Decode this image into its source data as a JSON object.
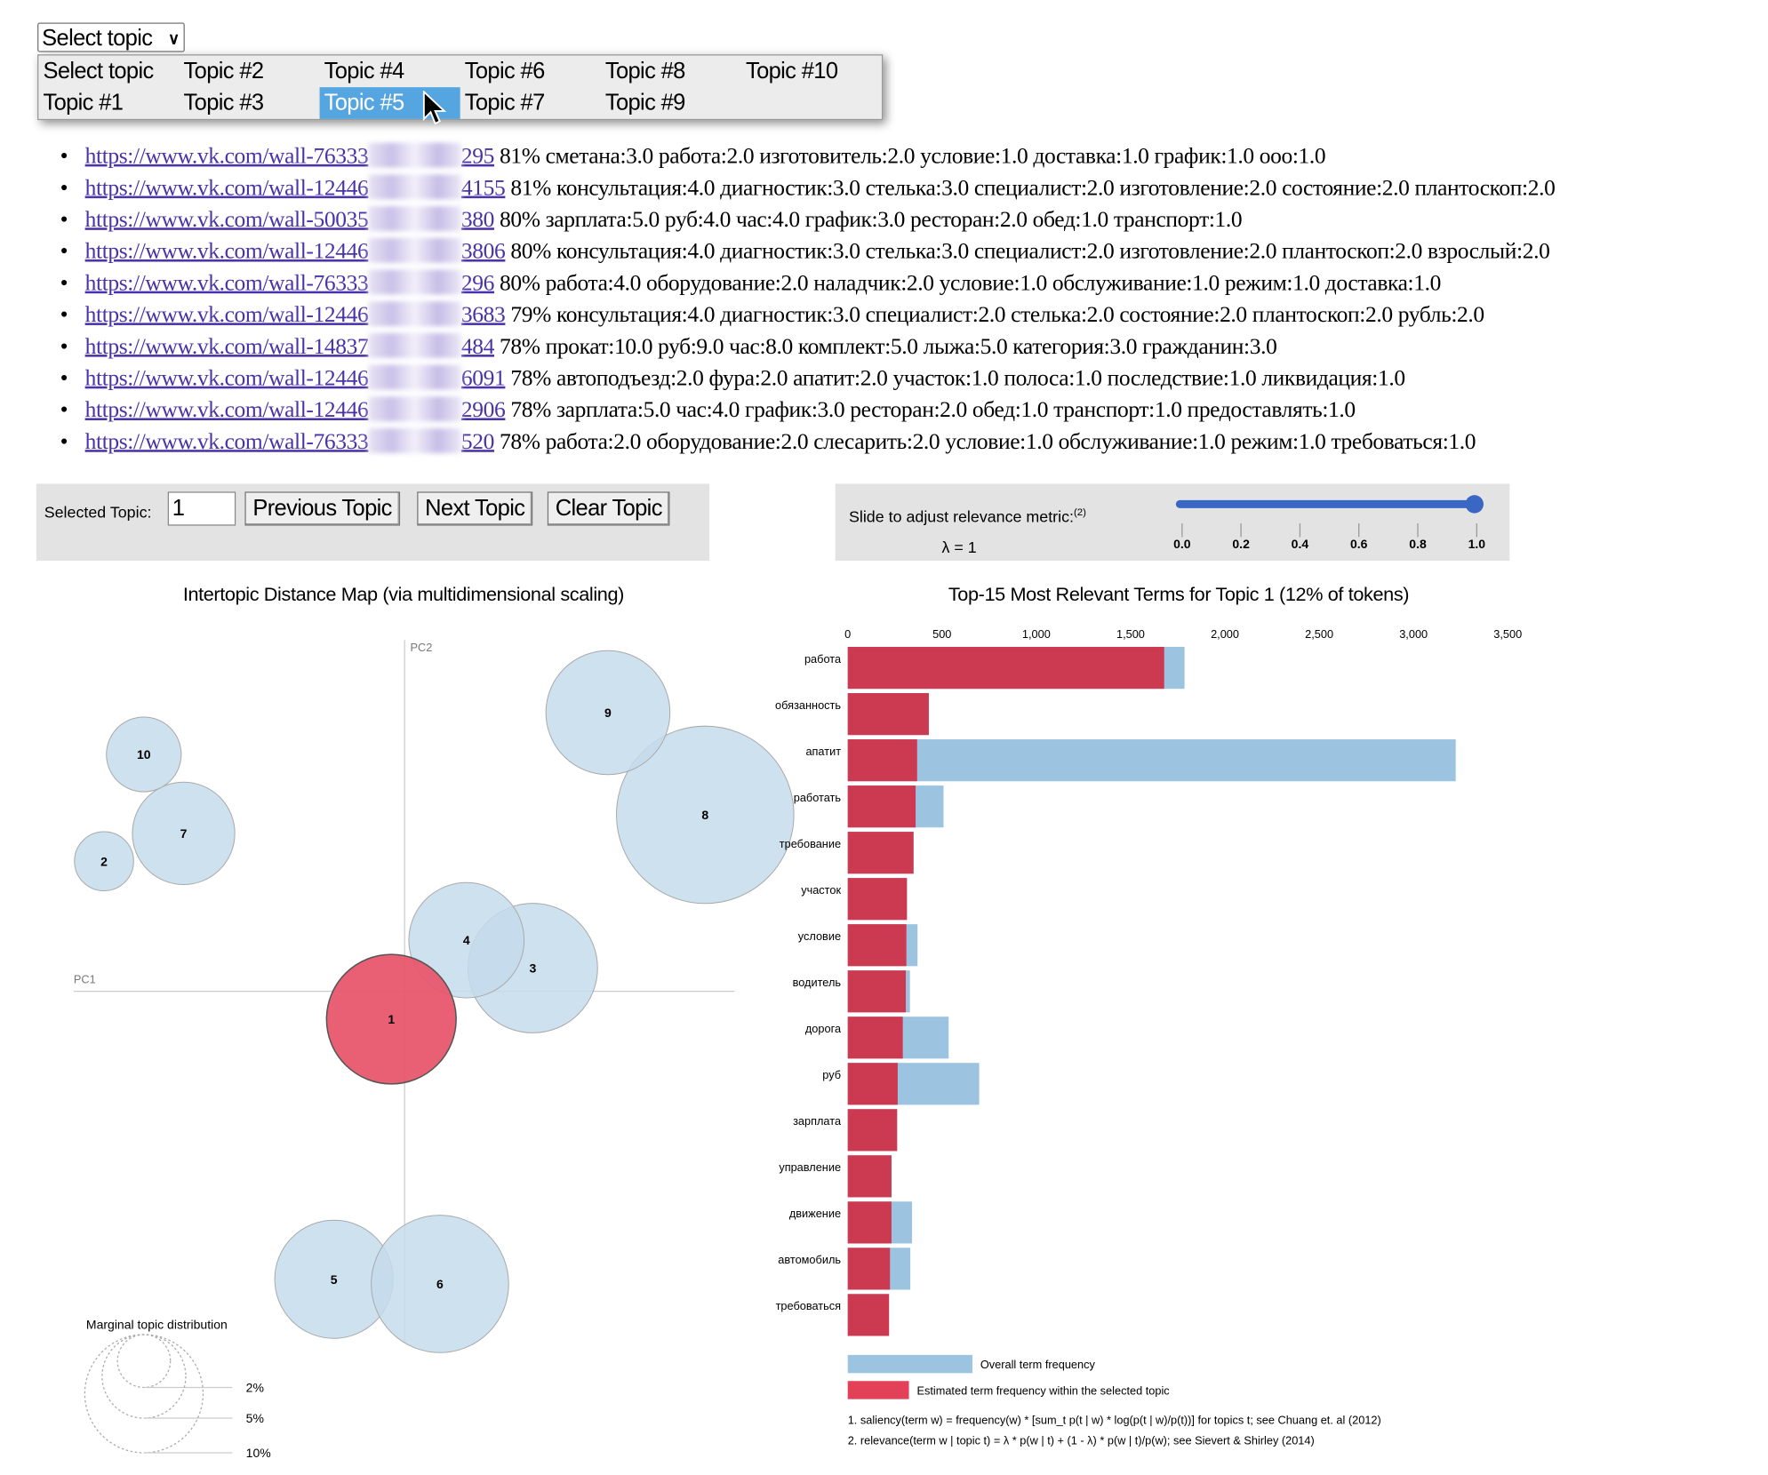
{
  "select": {
    "value": "Select topic",
    "options": [
      "Select topic",
      "Topic #1",
      "Topic #2",
      "Topic #3",
      "Topic #4",
      "Topic #5",
      "Topic #6",
      "Topic #7",
      "Topic #8",
      "Topic #9",
      "Topic #10"
    ],
    "highlighted_index": 5
  },
  "documents": [
    {
      "link_prefix": "https://www.vk.com/wall-76333",
      "link_suffix": "295",
      "pct": "81%",
      "terms": "сметана:3.0 работа:2.0 изготовитель:2.0 условие:1.0 доставка:1.0 график:1.0 ооо:1.0"
    },
    {
      "link_prefix": "https://www.vk.com/wall-12446",
      "link_suffix": "4155",
      "pct": "81%",
      "terms": "консультация:4.0 диагностик:3.0 стелька:3.0 специалист:2.0 изготовление:2.0 состояние:2.0 плантоскоп:2.0"
    },
    {
      "link_prefix": "https://www.vk.com/wall-50035",
      "link_suffix": "380",
      "pct": "80%",
      "terms": "зарплата:5.0 руб:4.0 час:4.0 график:3.0 ресторан:2.0 обед:1.0 транспорт:1.0"
    },
    {
      "link_prefix": "https://www.vk.com/wall-12446",
      "link_suffix": "3806",
      "pct": "80%",
      "terms": "консультация:4.0 диагностик:3.0 стелька:3.0 специалист:2.0 изготовление:2.0 плантоскоп:2.0 взрослый:2.0"
    },
    {
      "link_prefix": "https://www.vk.com/wall-76333",
      "link_suffix": "296",
      "pct": "80%",
      "terms": "работа:4.0 оборудование:2.0 наладчик:2.0 условие:1.0 обслуживание:1.0 режим:1.0 доставка:1.0"
    },
    {
      "link_prefix": "https://www.vk.com/wall-12446",
      "link_suffix": "3683",
      "pct": "79%",
      "terms": "консультация:4.0 диагностик:3.0 специалист:2.0 стелька:2.0 состояние:2.0 плантоскоп:2.0 рубль:2.0"
    },
    {
      "link_prefix": "https://www.vk.com/wall-14837",
      "link_suffix": "484",
      "pct": "78%",
      "terms": "прокат:10.0 руб:9.0 час:8.0 комплект:5.0 лыжа:5.0 категория:3.0 гражданин:3.0"
    },
    {
      "link_prefix": "https://www.vk.com/wall-12446",
      "link_suffix": "6091",
      "pct": "78%",
      "terms": "автоподъезд:2.0 фура:2.0 апатит:2.0 участок:1.0 полоса:1.0 последствие:1.0 ликвидация:1.0"
    },
    {
      "link_prefix": "https://www.vk.com/wall-12446",
      "link_suffix": "2906",
      "pct": "78%",
      "terms": "зарплата:5.0 час:4.0 график:3.0 ресторан:2.0 обед:1.0 транспорт:1.0 предоставлять:1.0"
    },
    {
      "link_prefix": "https://www.vk.com/wall-76333",
      "link_suffix": "520",
      "pct": "78%",
      "terms": "работа:2.0 оборудование:2.0 слесарить:2.0 условие:1.0 обслуживание:1.0 режим:1.0 требоваться:1.0"
    }
  ],
  "controls": {
    "selected_topic_label": "Selected Topic:",
    "selected_topic_value": "1",
    "prev": "Previous Topic",
    "next": "Next Topic",
    "clear": "Clear Topic",
    "slider_label": "Slide to adjust relevance metric:",
    "slider_sup": "(2)",
    "lambda_text": "λ = 1",
    "lambda_value": 1.0,
    "ticks": [
      "0.0",
      "0.2",
      "0.4",
      "0.6",
      "0.8",
      "1.0"
    ]
  },
  "colors": {
    "topic_bubble": "#c6dcec",
    "selected": "#e8576e",
    "bar_red": "#cc3a51",
    "bar_blue": "#9cc4e0",
    "slider": "#3b67c4"
  },
  "chart_data": [
    {
      "type": "scatter",
      "title": "Intertopic Distance Map (via multidimensional scaling)",
      "xlabel": "PC1",
      "ylabel": "PC2",
      "selected_topic": 1,
      "topics": [
        {
          "id": "1",
          "pc1": -0.03,
          "pc2": -0.06,
          "size_pct": 12
        },
        {
          "id": "2",
          "pc1": -0.68,
          "pc2": 0.28,
          "size_pct": 2.5
        },
        {
          "id": "3",
          "pc1": 0.29,
          "pc2": 0.05,
          "size_pct": 12
        },
        {
          "id": "4",
          "pc1": 0.14,
          "pc2": 0.11,
          "size_pct": 9.5
        },
        {
          "id": "5",
          "pc1": -0.16,
          "pc2": -0.62,
          "size_pct": 10
        },
        {
          "id": "6",
          "pc1": 0.08,
          "pc2": -0.63,
          "size_pct": 13.5
        },
        {
          "id": "7",
          "pc1": -0.5,
          "pc2": 0.34,
          "size_pct": 7.5
        },
        {
          "id": "8",
          "pc1": 0.68,
          "pc2": 0.38,
          "size_pct": 22.5
        },
        {
          "id": "9",
          "pc1": 0.46,
          "pc2": 0.6,
          "size_pct": 11
        },
        {
          "id": "10",
          "pc1": -0.59,
          "pc2": 0.51,
          "size_pct": 4
        }
      ],
      "marginal_legend": {
        "title": "Marginal topic distribution",
        "levels": [
          {
            "label": "2%",
            "pct": 2
          },
          {
            "label": "5%",
            "pct": 5
          },
          {
            "label": "10%",
            "pct": 10
          }
        ]
      }
    },
    {
      "type": "bar",
      "title": "Top-15 Most Relevant Terms for Topic 1 (12% of tokens)",
      "xlim": [
        0,
        3500
      ],
      "xticks": [
        "0",
        "500",
        "1,000",
        "1,500",
        "2,000",
        "2,500",
        "3,000",
        "3,500"
      ],
      "categories": [
        "работа",
        "обязанность",
        "апатит",
        "работать",
        "требование",
        "участок",
        "условие",
        "водитель",
        "дорога",
        "руб",
        "зарплата",
        "управление",
        "движение",
        "автомобиль",
        "требоваться"
      ],
      "series": [
        {
          "name": "Overall term frequency",
          "values": [
            1786,
            430,
            3224,
            508,
            349,
            314,
            370,
            330,
            535,
            697,
            262,
            232,
            341,
            332,
            219
          ]
        },
        {
          "name": "Estimated term frequency within the selected topic",
          "values": [
            1678,
            430,
            368,
            360,
            349,
            314,
            311,
            308,
            292,
            265,
            262,
            232,
            232,
            224,
            219
          ]
        }
      ],
      "footnotes": [
        "1. saliency(term w) = frequency(w) * [sum_t p(t | w) * log(p(t | w)/p(t))] for topics t; see Chuang et. al (2012)",
        "2. relevance(term w | topic t) = λ * p(w | t) + (1 - λ) * p(w | t)/p(w); see Sievert & Shirley (2014)"
      ]
    }
  ]
}
